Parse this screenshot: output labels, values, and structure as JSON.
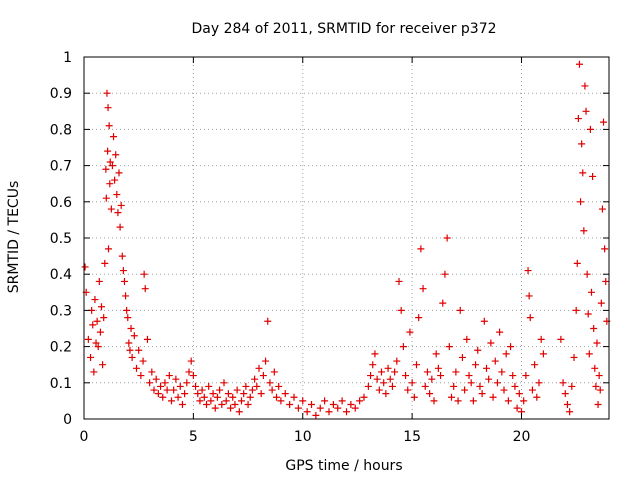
{
  "chart_data": {
    "type": "scatter",
    "title": "Day 284 of 2011, SRMTID for receiver p372",
    "xlabel": "GPS time / hours",
    "ylabel": "SRMTID / TECUs",
    "xlim": [
      0,
      24
    ],
    "ylim": [
      0,
      1
    ],
    "x_ticks": [
      0,
      5,
      10,
      15,
      20
    ],
    "x_tick_labels": [
      "0",
      "5",
      "10",
      "15",
      "20"
    ],
    "y_ticks": [
      0,
      0.1,
      0.2,
      0.3,
      0.4,
      0.5,
      0.6,
      0.7,
      0.8,
      0.9,
      1
    ],
    "y_tick_labels": [
      "0",
      "0.1",
      "0.2",
      "0.3",
      "0.4",
      "0.5",
      "0.6",
      "0.7",
      "0.8",
      "0.9",
      "1"
    ],
    "grid": true,
    "marker": "+",
    "series": [
      {
        "name": "SRMTID p372",
        "color": "#e00000",
        "points": [
          [
            0.05,
            0.42
          ],
          [
            0.1,
            0.35
          ],
          [
            0.2,
            0.22
          ],
          [
            0.3,
            0.17
          ],
          [
            0.35,
            0.3
          ],
          [
            0.4,
            0.26
          ],
          [
            0.45,
            0.13
          ],
          [
            0.5,
            0.33
          ],
          [
            0.55,
            0.21
          ],
          [
            0.6,
            0.27
          ],
          [
            0.65,
            0.2
          ],
          [
            0.7,
            0.38
          ],
          [
            0.75,
            0.24
          ],
          [
            0.8,
            0.31
          ],
          [
            0.85,
            0.15
          ],
          [
            0.9,
            0.28
          ],
          [
            0.95,
            0.43
          ],
          [
            1.0,
            0.69
          ],
          [
            1.02,
            0.61
          ],
          [
            1.05,
            0.9
          ],
          [
            1.08,
            0.74
          ],
          [
            1.1,
            0.86
          ],
          [
            1.12,
            0.47
          ],
          [
            1.15,
            0.81
          ],
          [
            1.18,
            0.65
          ],
          [
            1.2,
            0.71
          ],
          [
            1.25,
            0.58
          ],
          [
            1.3,
            0.7
          ],
          [
            1.35,
            0.78
          ],
          [
            1.4,
            0.66
          ],
          [
            1.45,
            0.73
          ],
          [
            1.5,
            0.62
          ],
          [
            1.55,
            0.57
          ],
          [
            1.6,
            0.68
          ],
          [
            1.65,
            0.53
          ],
          [
            1.7,
            0.59
          ],
          [
            1.75,
            0.45
          ],
          [
            1.8,
            0.41
          ],
          [
            1.85,
            0.38
          ],
          [
            1.9,
            0.34
          ],
          [
            1.95,
            0.3
          ],
          [
            2.0,
            0.28
          ],
          [
            2.05,
            0.21
          ],
          [
            2.1,
            0.19
          ],
          [
            2.15,
            0.25
          ],
          [
            2.2,
            0.17
          ],
          [
            2.3,
            0.23
          ],
          [
            2.4,
            0.14
          ],
          [
            2.5,
            0.19
          ],
          [
            2.6,
            0.12
          ],
          [
            2.7,
            0.16
          ],
          [
            2.75,
            0.4
          ],
          [
            2.8,
            0.36
          ],
          [
            2.9,
            0.22
          ],
          [
            3.0,
            0.1
          ],
          [
            3.1,
            0.13
          ],
          [
            3.2,
            0.08
          ],
          [
            3.3,
            0.11
          ],
          [
            3.4,
            0.07
          ],
          [
            3.5,
            0.09
          ],
          [
            3.6,
            0.06
          ],
          [
            3.7,
            0.1
          ],
          [
            3.8,
            0.08
          ],
          [
            3.9,
            0.12
          ],
          [
            4.0,
            0.05
          ],
          [
            4.1,
            0.08
          ],
          [
            4.2,
            0.11
          ],
          [
            4.3,
            0.06
          ],
          [
            4.4,
            0.09
          ],
          [
            4.5,
            0.04
          ],
          [
            4.6,
            0.07
          ],
          [
            4.7,
            0.1
          ],
          [
            4.8,
            0.13
          ],
          [
            4.9,
            0.16
          ],
          [
            5.0,
            0.12
          ],
          [
            5.1,
            0.09
          ],
          [
            5.2,
            0.07
          ],
          [
            5.3,
            0.05
          ],
          [
            5.4,
            0.08
          ],
          [
            5.5,
            0.06
          ],
          [
            5.6,
            0.04
          ],
          [
            5.7,
            0.09
          ],
          [
            5.8,
            0.05
          ],
          [
            5.9,
            0.07
          ],
          [
            6.0,
            0.03
          ],
          [
            6.1,
            0.06
          ],
          [
            6.2,
            0.08
          ],
          [
            6.3,
            0.04
          ],
          [
            6.4,
            0.1
          ],
          [
            6.5,
            0.05
          ],
          [
            6.6,
            0.07
          ],
          [
            6.7,
            0.03
          ],
          [
            6.8,
            0.06
          ],
          [
            6.9,
            0.04
          ],
          [
            7.0,
            0.08
          ],
          [
            7.1,
            0.02
          ],
          [
            7.2,
            0.05
          ],
          [
            7.3,
            0.07
          ],
          [
            7.4,
            0.09
          ],
          [
            7.5,
            0.04
          ],
          [
            7.6,
            0.06
          ],
          [
            7.7,
            0.08
          ],
          [
            7.8,
            0.11
          ],
          [
            7.9,
            0.09
          ],
          [
            8.0,
            0.14
          ],
          [
            8.1,
            0.07
          ],
          [
            8.2,
            0.12
          ],
          [
            8.3,
            0.16
          ],
          [
            8.4,
            0.27
          ],
          [
            8.5,
            0.1
          ],
          [
            8.6,
            0.08
          ],
          [
            8.7,
            0.13
          ],
          [
            8.8,
            0.06
          ],
          [
            8.9,
            0.09
          ],
          [
            9.0,
            0.05
          ],
          [
            9.2,
            0.07
          ],
          [
            9.4,
            0.04
          ],
          [
            9.6,
            0.06
          ],
          [
            9.8,
            0.03
          ],
          [
            10.0,
            0.05
          ],
          [
            10.2,
            0.02
          ],
          [
            10.4,
            0.04
          ],
          [
            10.6,
            0.01
          ],
          [
            10.8,
            0.03
          ],
          [
            11.0,
            0.05
          ],
          [
            11.2,
            0.02
          ],
          [
            11.4,
            0.04
          ],
          [
            11.6,
            0.03
          ],
          [
            11.8,
            0.05
          ],
          [
            12.0,
            0.02
          ],
          [
            12.2,
            0.04
          ],
          [
            12.4,
            0.03
          ],
          [
            12.6,
            0.05
          ],
          [
            12.8,
            0.06
          ],
          [
            13.0,
            0.09
          ],
          [
            13.1,
            0.12
          ],
          [
            13.2,
            0.15
          ],
          [
            13.3,
            0.18
          ],
          [
            13.4,
            0.11
          ],
          [
            13.5,
            0.08
          ],
          [
            13.6,
            0.13
          ],
          [
            13.7,
            0.1
          ],
          [
            13.8,
            0.07
          ],
          [
            13.9,
            0.14
          ],
          [
            14.0,
            0.11
          ],
          [
            14.1,
            0.09
          ],
          [
            14.2,
            0.13
          ],
          [
            14.3,
            0.16
          ],
          [
            14.4,
            0.38
          ],
          [
            14.5,
            0.3
          ],
          [
            14.6,
            0.2
          ],
          [
            14.7,
            0.12
          ],
          [
            14.8,
            0.08
          ],
          [
            14.9,
            0.24
          ],
          [
            15.0,
            0.1
          ],
          [
            15.1,
            0.06
          ],
          [
            15.2,
            0.15
          ],
          [
            15.3,
            0.28
          ],
          [
            15.4,
            0.47
          ],
          [
            15.5,
            0.36
          ],
          [
            15.6,
            0.09
          ],
          [
            15.7,
            0.13
          ],
          [
            15.8,
            0.07
          ],
          [
            15.9,
            0.11
          ],
          [
            16.0,
            0.05
          ],
          [
            16.1,
            0.18
          ],
          [
            16.2,
            0.14
          ],
          [
            16.3,
            0.12
          ],
          [
            16.4,
            0.32
          ],
          [
            16.5,
            0.4
          ],
          [
            16.6,
            0.5
          ],
          [
            16.7,
            0.2
          ],
          [
            16.8,
            0.06
          ],
          [
            16.9,
            0.09
          ],
          [
            17.0,
            0.13
          ],
          [
            17.1,
            0.05
          ],
          [
            17.2,
            0.3
          ],
          [
            17.3,
            0.17
          ],
          [
            17.4,
            0.08
          ],
          [
            17.5,
            0.22
          ],
          [
            17.6,
            0.12
          ],
          [
            17.7,
            0.1
          ],
          [
            17.8,
            0.05
          ],
          [
            17.9,
            0.15
          ],
          [
            18.0,
            0.19
          ],
          [
            18.1,
            0.09
          ],
          [
            18.2,
            0.07
          ],
          [
            18.3,
            0.27
          ],
          [
            18.4,
            0.14
          ],
          [
            18.5,
            0.11
          ],
          [
            18.6,
            0.21
          ],
          [
            18.7,
            0.06
          ],
          [
            18.8,
            0.16
          ],
          [
            18.9,
            0.1
          ],
          [
            19.0,
            0.24
          ],
          [
            19.1,
            0.13
          ],
          [
            19.2,
            0.08
          ],
          [
            19.3,
            0.18
          ],
          [
            19.4,
            0.05
          ],
          [
            19.5,
            0.2
          ],
          [
            19.6,
            0.12
          ],
          [
            19.7,
            0.09
          ],
          [
            19.8,
            0.03
          ],
          [
            19.9,
            0.07
          ],
          [
            20.0,
            0.02
          ],
          [
            20.1,
            0.05
          ],
          [
            20.2,
            0.12
          ],
          [
            20.3,
            0.41
          ],
          [
            20.35,
            0.34
          ],
          [
            20.4,
            0.28
          ],
          [
            20.5,
            0.08
          ],
          [
            20.6,
            0.15
          ],
          [
            20.7,
            0.06
          ],
          [
            20.8,
            0.1
          ],
          [
            20.9,
            0.22
          ],
          [
            21.0,
            0.18
          ],
          [
            21.8,
            0.22
          ],
          [
            21.9,
            0.1
          ],
          [
            22.0,
            0.07
          ],
          [
            22.1,
            0.04
          ],
          [
            22.2,
            0.02
          ],
          [
            22.3,
            0.09
          ],
          [
            22.4,
            0.17
          ],
          [
            22.5,
            0.3
          ],
          [
            22.55,
            0.43
          ],
          [
            22.6,
            0.83
          ],
          [
            22.65,
            0.98
          ],
          [
            22.7,
            0.6
          ],
          [
            22.75,
            0.76
          ],
          [
            22.8,
            0.68
          ],
          [
            22.85,
            0.52
          ],
          [
            22.9,
            0.92
          ],
          [
            22.95,
            0.85
          ],
          [
            23.0,
            0.4
          ],
          [
            23.05,
            0.29
          ],
          [
            23.1,
            0.18
          ],
          [
            23.15,
            0.8
          ],
          [
            23.2,
            0.35
          ],
          [
            23.25,
            0.67
          ],
          [
            23.3,
            0.25
          ],
          [
            23.35,
            0.14
          ],
          [
            23.4,
            0.09
          ],
          [
            23.45,
            0.21
          ],
          [
            23.5,
            0.04
          ],
          [
            23.55,
            0.12
          ],
          [
            23.6,
            0.08
          ],
          [
            23.65,
            0.32
          ],
          [
            23.7,
            0.58
          ],
          [
            23.75,
            0.82
          ],
          [
            23.8,
            0.47
          ],
          [
            23.85,
            0.38
          ],
          [
            23.9,
            0.27
          ]
        ]
      }
    ]
  }
}
